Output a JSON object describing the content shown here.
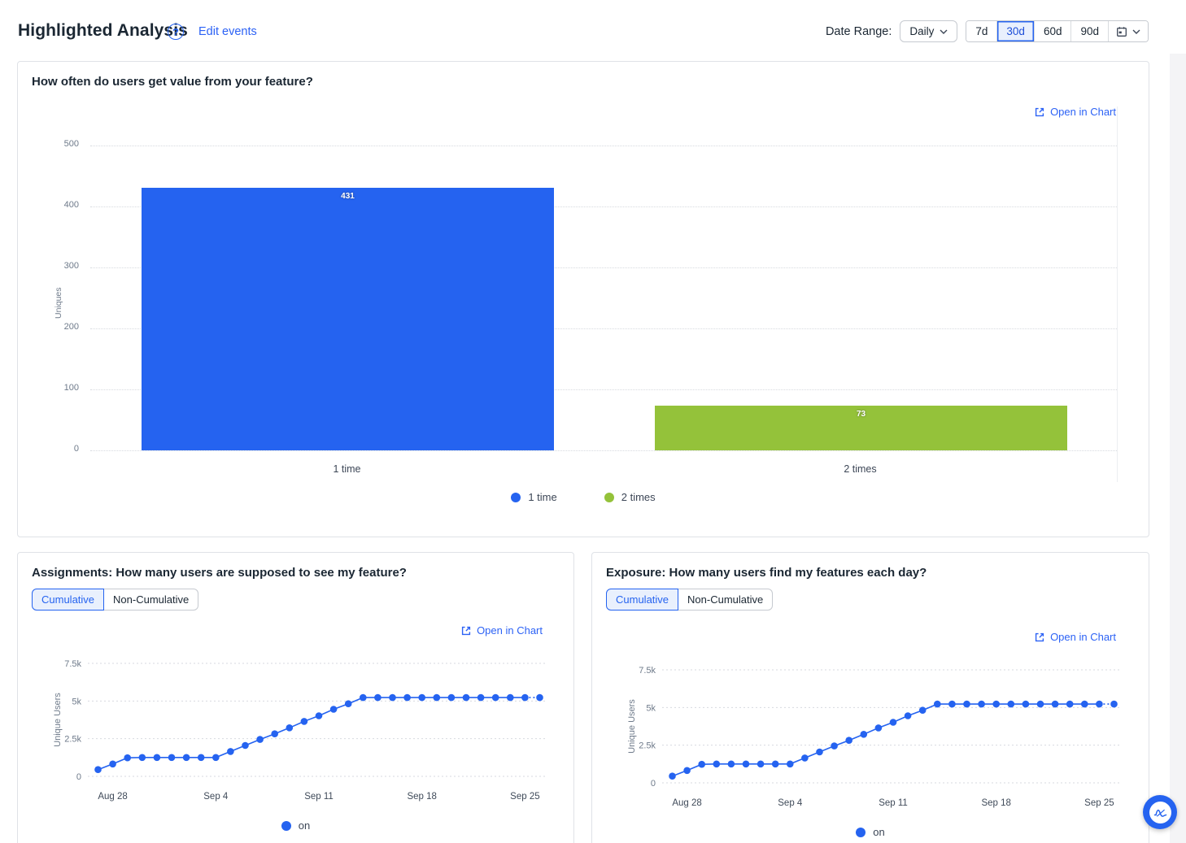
{
  "header": {
    "title": "Highlighted Analysis",
    "help_glyph": "?",
    "edit_events_label": "Edit events",
    "date_range_label": "Date Range:",
    "granularity_value": "Daily",
    "range_options": [
      "7d",
      "30d",
      "60d",
      "90d"
    ],
    "selected_range": "30d"
  },
  "cards": {
    "frequency": {
      "title": "How often do users get value from your feature?",
      "open_in_chart_label": "Open in Chart"
    },
    "assignments": {
      "title": "Assignments: How many users are supposed to see my feature?",
      "toggle_options": [
        "Cumulative",
        "Non-Cumulative"
      ],
      "selected_toggle": "Cumulative",
      "open_in_chart_label": "Open in Chart",
      "legend_label": "on"
    },
    "exposure": {
      "title": "Exposure: How many users find my features each day?",
      "toggle_options": [
        "Cumulative",
        "Non-Cumulative"
      ],
      "selected_toggle": "Cumulative",
      "open_in_chart_label": "Open in Chart",
      "legend_label": "on"
    }
  },
  "colors": {
    "accent_blue": "#2563f0",
    "series_green": "#94c23a",
    "link_blue": "#2c62f5"
  },
  "chart_data": [
    {
      "type": "bar",
      "title": "How often do users get value from your feature?",
      "ylabel": "Uniques",
      "categories": [
        "1 time",
        "2 times"
      ],
      "values": [
        431,
        73
      ],
      "bar_colors": [
        "#2563f0",
        "#94c23a"
      ],
      "ylim": [
        0,
        500
      ],
      "yticks": [
        0,
        100,
        200,
        300,
        400,
        500
      ],
      "grid": "horizontal-dotted",
      "legend_position": "bottom-center",
      "legend": [
        {
          "label": "1 time",
          "color": "#2563f0"
        },
        {
          "label": "2 times",
          "color": "#94c23a"
        }
      ]
    },
    {
      "type": "line",
      "title": "Assignments: How many users are supposed to see my feature?",
      "ylabel": "Unique Users",
      "ylim": [
        0,
        7500
      ],
      "yticks": [
        {
          "v": 0,
          "label": "0"
        },
        {
          "v": 2500,
          "label": "2.5k"
        },
        {
          "v": 5000,
          "label": "5k"
        },
        {
          "v": 7500,
          "label": "7.5k"
        }
      ],
      "xticks": [
        {
          "label": "Aug 28",
          "i": 1
        },
        {
          "label": "Sep 4",
          "i": 8
        },
        {
          "label": "Sep 11",
          "i": 15
        },
        {
          "label": "Sep 18",
          "i": 22
        },
        {
          "label": "Sep 25",
          "i": 29
        }
      ],
      "grid": "horizontal-dotted",
      "legend_position": "bottom-center",
      "last_segment_projected": true,
      "series": [
        {
          "name": "on",
          "color": "#2563f0",
          "values": [
            450,
            820,
            1230,
            1250,
            1250,
            1250,
            1250,
            1250,
            1250,
            1650,
            2050,
            2450,
            2820,
            3220,
            3650,
            4020,
            4450,
            4820,
            5230,
            5230,
            5230,
            5230,
            5230,
            5230,
            5230,
            5230,
            5230,
            5230,
            5230,
            5230,
            5230
          ]
        }
      ]
    },
    {
      "type": "line",
      "title": "Exposure: How many users find my features each day?",
      "ylabel": "Unique Users",
      "ylim": [
        0,
        7500
      ],
      "yticks": [
        {
          "v": 0,
          "label": "0"
        },
        {
          "v": 2500,
          "label": "2.5k"
        },
        {
          "v": 5000,
          "label": "5k"
        },
        {
          "v": 7500,
          "label": "7.5k"
        }
      ],
      "xticks": [
        {
          "label": "Aug 28",
          "i": 1
        },
        {
          "label": "Sep 4",
          "i": 8
        },
        {
          "label": "Sep 11",
          "i": 15
        },
        {
          "label": "Sep 18",
          "i": 22
        },
        {
          "label": "Sep 25",
          "i": 29
        }
      ],
      "grid": "horizontal-dotted",
      "legend_position": "bottom-center",
      "last_segment_projected": true,
      "series": [
        {
          "name": "on",
          "color": "#2563f0",
          "values": [
            450,
            820,
            1230,
            1250,
            1250,
            1250,
            1250,
            1250,
            1250,
            1650,
            2050,
            2450,
            2820,
            3220,
            3650,
            4020,
            4450,
            4820,
            5230,
            5230,
            5230,
            5230,
            5230,
            5230,
            5230,
            5230,
            5230,
            5230,
            5230,
            5230,
            5230
          ]
        }
      ]
    }
  ]
}
